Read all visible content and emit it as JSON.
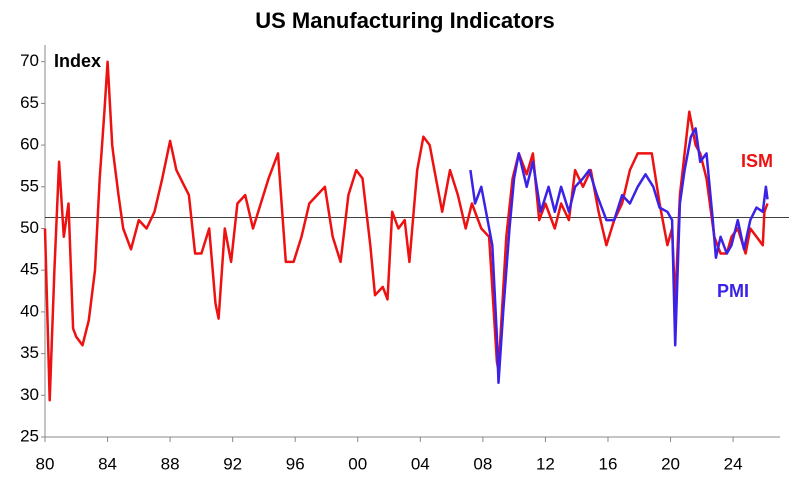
{
  "chart_data": {
    "type": "line",
    "title": "US Manufacturing Indicators",
    "annotations": [
      "Index"
    ],
    "xlim": [
      1980,
      2027
    ],
    "xticks": [
      {
        "value": 1980,
        "label": "80"
      },
      {
        "value": 1984,
        "label": "84"
      },
      {
        "value": 1988,
        "label": "88"
      },
      {
        "value": 1992,
        "label": "92"
      },
      {
        "value": 1996,
        "label": "96"
      },
      {
        "value": 2000,
        "label": "00"
      },
      {
        "value": 2004,
        "label": "04"
      },
      {
        "value": 2008,
        "label": "08"
      },
      {
        "value": 2012,
        "label": "12"
      },
      {
        "value": 2016,
        "label": "16"
      },
      {
        "value": 2020,
        "label": "20"
      },
      {
        "value": 2024,
        "label": "24"
      }
    ],
    "ylim": [
      25,
      72
    ],
    "yticks": [
      25,
      30,
      35,
      40,
      45,
      50,
      55,
      60,
      65,
      70
    ],
    "reference_line": 51.3,
    "series": [
      {
        "name": "ISM",
        "color": "#ee1111",
        "x": [
          1980.0,
          1980.3,
          1980.6,
          1980.9,
          1981.2,
          1981.5,
          1981.8,
          1982.0,
          1982.4,
          1982.8,
          1983.2,
          1983.5,
          1983.8,
          1984.0,
          1984.3,
          1984.7,
          1985.0,
          1985.5,
          1986.0,
          1986.5,
          1987.0,
          1987.5,
          1988.0,
          1988.4,
          1988.8,
          1989.2,
          1989.6,
          1990.0,
          1990.5,
          1990.9,
          1991.1,
          1991.5,
          1991.9,
          1992.3,
          1992.8,
          1993.3,
          1993.8,
          1994.3,
          1994.9,
          1995.4,
          1995.9,
          1996.4,
          1996.9,
          1997.4,
          1997.9,
          1998.4,
          1998.9,
          1999.4,
          1999.9,
          2000.3,
          2000.8,
          2001.1,
          2001.6,
          2001.9,
          2002.2,
          2002.6,
          2003.0,
          2003.3,
          2003.8,
          2004.2,
          2004.6,
          2004.9,
          2005.4,
          2005.9,
          2006.4,
          2006.9,
          2007.3,
          2007.9,
          2008.4,
          2008.9,
          2009.0,
          2009.5,
          2009.9,
          2010.3,
          2010.8,
          2011.2,
          2011.6,
          2012.0,
          2012.6,
          2013.0,
          2013.5,
          2013.9,
          2014.4,
          2014.9,
          2015.4,
          2015.9,
          2016.4,
          2016.9,
          2017.4,
          2017.9,
          2018.4,
          2018.8,
          2019.3,
          2019.8,
          2020.1,
          2020.3,
          2020.6,
          2020.9,
          2021.2,
          2021.6,
          2021.9,
          2022.3,
          2022.8,
          2023.2,
          2023.6,
          2023.9,
          2024.3,
          2024.8,
          2025.1,
          2025.5,
          2025.9,
          2026.0,
          2026.2
        ],
        "values": [
          50,
          29.4,
          45,
          58,
          49,
          53,
          38,
          37,
          36,
          39,
          45,
          56,
          64,
          70,
          60,
          54,
          50,
          47.5,
          51,
          50,
          52,
          56,
          60.5,
          57,
          55.5,
          54,
          47,
          47,
          50,
          41,
          39.2,
          50,
          46,
          53,
          54,
          50,
          53,
          56,
          59,
          46,
          46,
          49,
          53,
          54,
          55,
          49,
          46,
          54,
          57,
          56,
          48,
          42,
          43,
          41.5,
          52,
          50,
          51,
          46,
          57,
          61,
          60,
          57,
          52,
          57,
          54,
          50,
          53,
          50,
          49,
          34,
          33,
          49,
          56,
          59,
          56.5,
          59,
          51,
          53,
          50,
          53,
          51,
          57,
          55,
          57,
          52,
          48,
          51,
          53,
          57,
          59,
          59,
          59,
          53,
          48,
          50,
          41,
          54,
          59,
          64,
          60,
          59,
          56,
          49,
          47,
          47,
          49,
          50,
          47,
          50,
          49,
          48,
          52,
          53
        ]
      },
      {
        "name": "PMI",
        "color": "#3a22e6",
        "x": [
          2007.2,
          2007.5,
          2007.9,
          2008.3,
          2008.6,
          2008.9,
          2009.0,
          2009.3,
          2009.7,
          2010.0,
          2010.3,
          2010.8,
          2011.2,
          2011.7,
          2012.2,
          2012.6,
          2013.0,
          2013.5,
          2013.9,
          2014.4,
          2014.8,
          2015.3,
          2015.9,
          2016.4,
          2016.9,
          2017.4,
          2017.9,
          2018.4,
          2018.9,
          2019.3,
          2019.8,
          2020.1,
          2020.3,
          2020.6,
          2020.9,
          2021.3,
          2021.6,
          2021.9,
          2022.3,
          2022.7,
          2022.9,
          2023.2,
          2023.6,
          2023.9,
          2024.3,
          2024.7,
          2025.1,
          2025.5,
          2025.9,
          2026.1,
          2026.2
        ],
        "values": [
          57,
          53,
          55,
          51,
          48,
          37,
          31.5,
          40,
          50,
          56,
          59,
          55,
          58,
          52,
          55,
          52,
          55,
          52,
          55,
          56,
          57,
          54,
          51,
          51,
          54,
          53,
          55,
          56.5,
          55,
          52.5,
          52,
          51,
          36,
          53,
          57,
          61,
          62,
          58,
          59,
          51,
          46.5,
          49,
          47,
          48,
          51,
          47.5,
          51,
          52.5,
          52,
          55,
          53.5
        ]
      }
    ]
  }
}
